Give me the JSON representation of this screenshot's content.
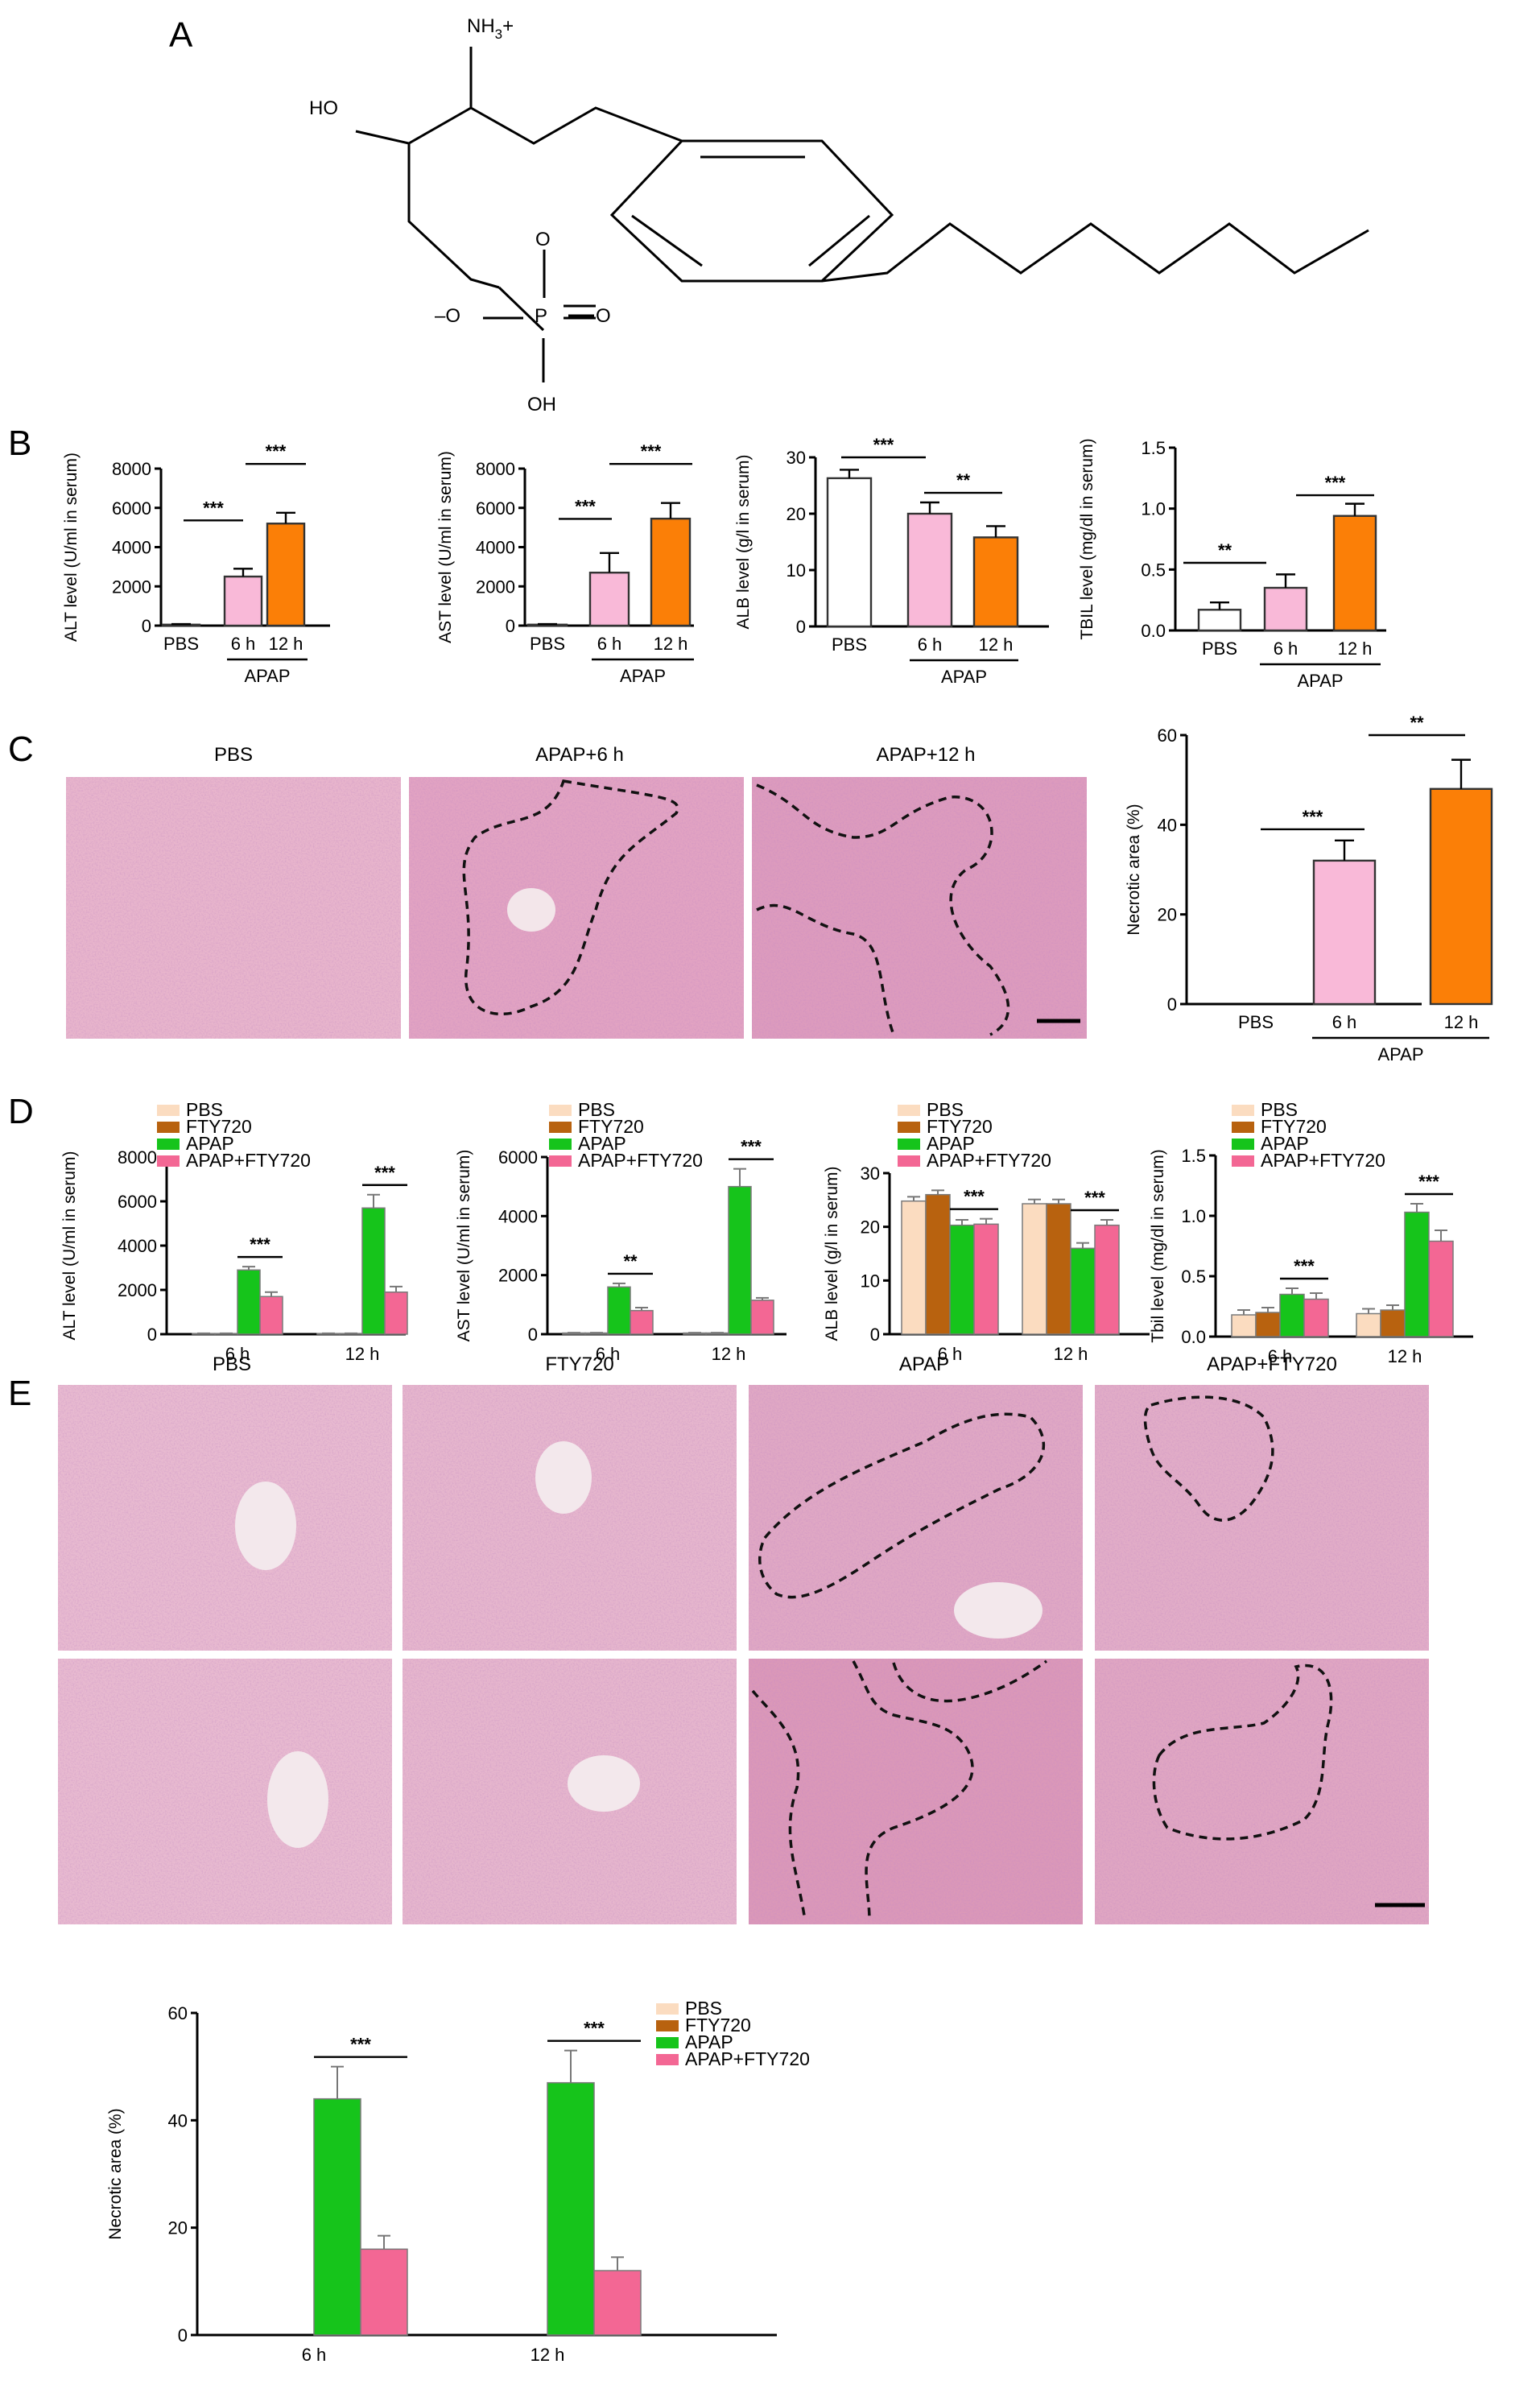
{
  "panels": {
    "A": "A",
    "B": "B",
    "C": "C",
    "D": "D",
    "E": "E"
  },
  "molecule": {
    "nh3": "NH",
    "nh3_sub": "3",
    "nh3_charge": "+",
    "ho": "HO",
    "o_link": "O",
    "o_minus": "–O",
    "p": "P",
    "o_double": "O",
    "oh": "OH"
  },
  "palette": {
    "pbs": "#fbdcc0",
    "fty720": "#b8620f",
    "apap": "#16c41b",
    "apap_fty": "#f36794",
    "apap6": "#f9b9d8",
    "apap12": "#fb7f07",
    "pbs_open": "#ffffff"
  },
  "histology": {
    "C": [
      "PBS",
      "APAP+6 h",
      "APAP+12 h"
    ],
    "E": [
      "PBS",
      "FTY720",
      "APAP",
      "APAP+FTY720"
    ]
  },
  "chart_data": [
    {
      "id": "B1",
      "type": "bar",
      "categories": [
        "PBS",
        "6 h",
        "12 h"
      ],
      "group_label": "APAP",
      "values": [
        50,
        2500,
        5200
      ],
      "errors": [
        30,
        400,
        550
      ],
      "ylabel": "ALT level (U/ml in serum)",
      "ylim": [
        0,
        8000
      ],
      "yticks": [
        "0",
        "2000",
        "4000",
        "6000",
        "8000"
      ],
      "significance": [
        "***",
        "***"
      ]
    },
    {
      "id": "B2",
      "type": "bar",
      "categories": [
        "PBS",
        "6 h",
        "12 h"
      ],
      "group_label": "APAP",
      "values": [
        50,
        2700,
        5450
      ],
      "errors": [
        30,
        1000,
        800
      ],
      "ylabel": "AST level (U/ml in serum)",
      "ylim": [
        0,
        8000
      ],
      "yticks": [
        "0",
        "2000",
        "4000",
        "6000",
        "8000"
      ],
      "significance": [
        "***",
        "***"
      ]
    },
    {
      "id": "B3",
      "type": "bar",
      "categories": [
        "PBS",
        "6 h",
        "12 h"
      ],
      "group_label": "APAP",
      "values": [
        26.3,
        20.0,
        15.8
      ],
      "errors": [
        1.5,
        2.0,
        2.0
      ],
      "ylabel": "ALB level (g/l in serum)",
      "ylim": [
        0,
        30
      ],
      "yticks": [
        "0",
        "10",
        "20",
        "30"
      ],
      "significance": [
        "***",
        "**"
      ]
    },
    {
      "id": "B4",
      "type": "bar",
      "categories": [
        "PBS",
        "6 h",
        "12 h"
      ],
      "group_label": "APAP",
      "values": [
        0.17,
        0.35,
        0.94
      ],
      "errors": [
        0.06,
        0.11,
        0.1
      ],
      "ylabel": "TBIL level (mg/dl in serum)",
      "ylim": [
        0,
        1.5
      ],
      "yticks": [
        "0.0",
        "0.5",
        "1.0",
        "1.5"
      ],
      "significance": [
        "**",
        "***"
      ]
    },
    {
      "id": "C1",
      "type": "bar",
      "categories": [
        "PBS",
        "6 h",
        "12 h"
      ],
      "group_label": "APAP",
      "values": [
        0,
        32,
        48
      ],
      "errors": [
        0,
        4.5,
        6.5
      ],
      "ylabel": "Necrotic area (%)",
      "ylim": [
        0,
        60
      ],
      "yticks": [
        "0",
        "20",
        "40",
        "60"
      ],
      "significance": [
        "***",
        "**"
      ]
    },
    {
      "id": "D1",
      "type": "bar",
      "categories": [
        "6 h",
        "12 h"
      ],
      "series": [
        {
          "name": "PBS",
          "values": [
            30,
            30
          ]
        },
        {
          "name": "FTY720",
          "values": [
            30,
            30
          ]
        },
        {
          "name": "APAP",
          "values": [
            2900,
            5700
          ]
        },
        {
          "name": "APAP+FTY720",
          "values": [
            1700,
            1900
          ]
        }
      ],
      "errors": [
        [
          10,
          10,
          150,
          200
        ],
        [
          10,
          10,
          600,
          250
        ]
      ],
      "ylabel": "ALT level (U/ml in serum)",
      "ylim": [
        0,
        8000
      ],
      "yticks": [
        "0",
        "2000",
        "4000",
        "6000",
        "8000"
      ],
      "significance": [
        "***",
        "***"
      ]
    },
    {
      "id": "D2",
      "type": "bar",
      "categories": [
        "6 h",
        "12 h"
      ],
      "series": [
        {
          "name": "PBS",
          "values": [
            40,
            40
          ]
        },
        {
          "name": "FTY720",
          "values": [
            40,
            40
          ]
        },
        {
          "name": "APAP",
          "values": [
            1600,
            5000
          ]
        },
        {
          "name": "APAP+FTY720",
          "values": [
            800,
            1150
          ]
        }
      ],
      "errors": [
        [
          10,
          10,
          120,
          100
        ],
        [
          10,
          10,
          600,
          80
        ]
      ],
      "ylabel": "AST level (U/ml in serum)",
      "ylim": [
        0,
        6000
      ],
      "yticks": [
        "0",
        "2000",
        "4000",
        "6000"
      ],
      "significance": [
        "**",
        "***"
      ]
    },
    {
      "id": "D3",
      "type": "bar",
      "categories": [
        "6 h",
        "12 h"
      ],
      "series": [
        {
          "name": "PBS",
          "values": [
            24.8,
            24.3
          ]
        },
        {
          "name": "FTY720",
          "values": [
            26.0,
            24.3
          ]
        },
        {
          "name": "APAP",
          "values": [
            20.3,
            16.0
          ]
        },
        {
          "name": "APAP+FTY720",
          "values": [
            20.5,
            20.3
          ]
        }
      ],
      "errors": [
        [
          0.8,
          0.8,
          1.0,
          1.0
        ],
        [
          0.8,
          0.8,
          1.0,
          1.0
        ]
      ],
      "ylabel": "ALB level (g/l in serum)",
      "ylim": [
        0,
        30
      ],
      "yticks": [
        "0",
        "10",
        "20",
        "30"
      ],
      "significance": [
        "***",
        "***"
      ]
    },
    {
      "id": "D4",
      "type": "bar",
      "categories": [
        "6 h",
        "12 h"
      ],
      "series": [
        {
          "name": "PBS",
          "values": [
            0.18,
            0.19
          ]
        },
        {
          "name": "FTY720",
          "values": [
            0.2,
            0.22
          ]
        },
        {
          "name": "APAP",
          "values": [
            0.35,
            1.03
          ]
        },
        {
          "name": "APAP+FTY720",
          "values": [
            0.31,
            0.79
          ]
        }
      ],
      "errors": [
        [
          0.04,
          0.04,
          0.05,
          0.05
        ],
        [
          0.04,
          0.04,
          0.07,
          0.09
        ]
      ],
      "ylabel": "Tbil level (mg/dl in serum)",
      "ylim": [
        0,
        1.5
      ],
      "yticks": [
        "0.0",
        "0.5",
        "1.0",
        "1.5"
      ],
      "significance": [
        "***",
        "***"
      ]
    },
    {
      "id": "E1",
      "type": "bar",
      "categories": [
        "6 h",
        "12 h"
      ],
      "series": [
        {
          "name": "PBS",
          "values": [
            0,
            0
          ]
        },
        {
          "name": "FTY720",
          "values": [
            0,
            0
          ]
        },
        {
          "name": "APAP",
          "values": [
            44,
            47
          ]
        },
        {
          "name": "APAP+FTY720",
          "values": [
            16,
            12
          ]
        }
      ],
      "errors": [
        [
          0,
          0,
          6,
          2.5
        ],
        [
          0,
          0,
          6,
          2.5
        ]
      ],
      "ylabel": "Necrotic area (%)",
      "ylim": [
        0,
        60
      ],
      "yticks": [
        "0",
        "20",
        "40",
        "60"
      ],
      "significance": [
        "***",
        "***"
      ]
    }
  ]
}
